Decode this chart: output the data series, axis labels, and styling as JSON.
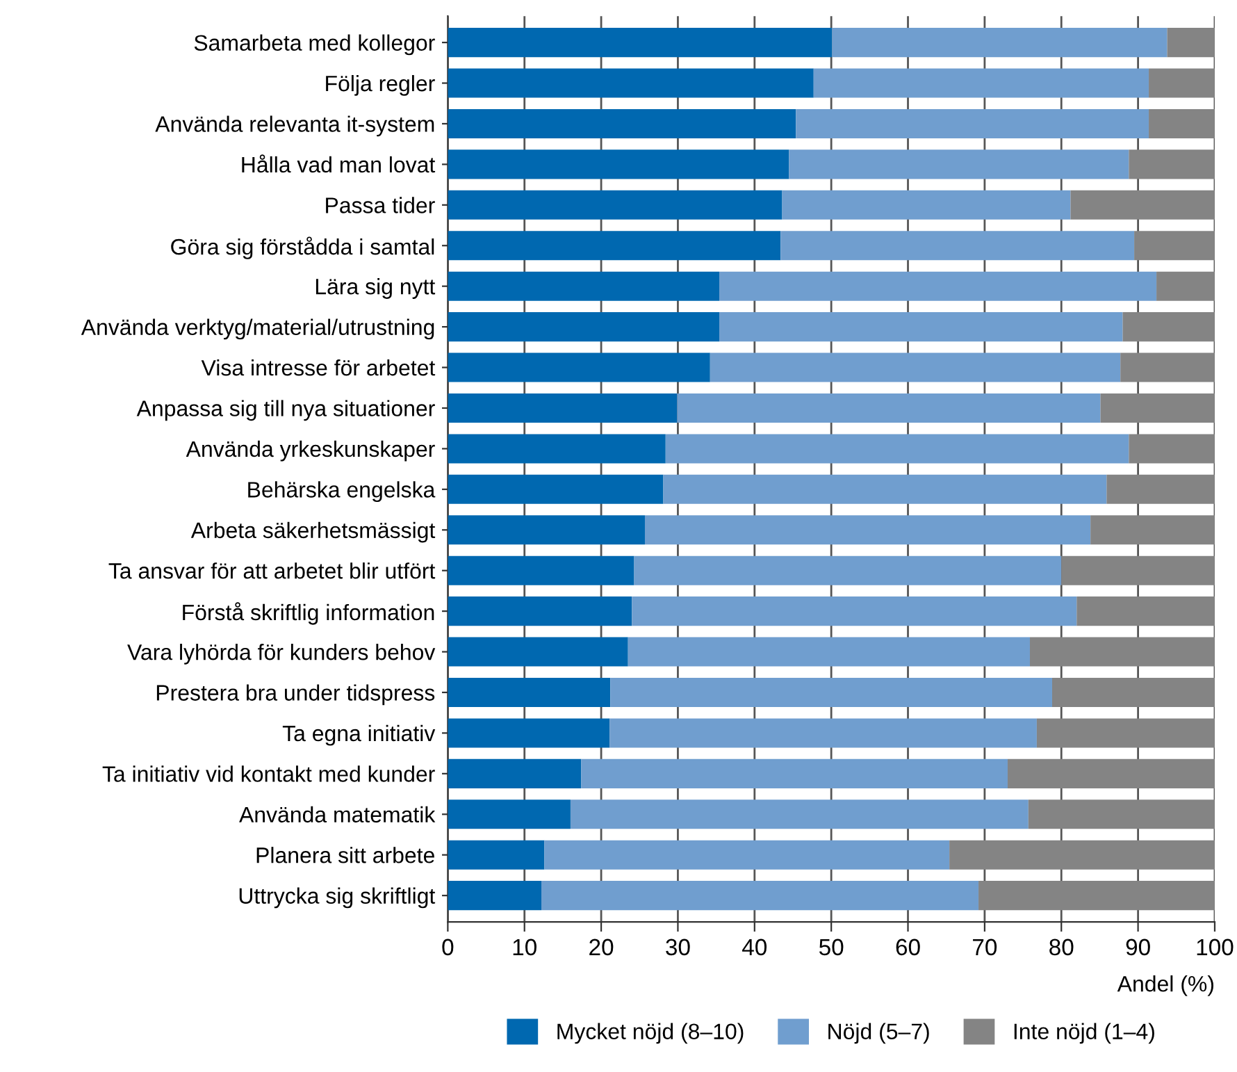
{
  "chart_data": {
    "type": "bar",
    "orientation": "horizontal",
    "stacked": true,
    "xlabel": "Andel (%)",
    "categories": [
      "Samarbeta med kollegor",
      "Följa regler",
      "Använda relevanta it-system",
      "Hålla vad man lovat",
      "Passa tider",
      "Göra sig förstådda i samtal",
      "Lära sig nytt",
      "Använda verktyg/material/utrustning",
      "Visa intresse för arbetet",
      "Anpassa sig till nya situationer",
      "Använda yrkeskunskaper",
      "Behärska engelska",
      "Arbeta säkerhetsmässigt",
      "Ta ansvar för att arbetet blir utfört",
      "Förstå skriftlig information",
      "Vara lyhörda för kunders behov",
      "Prestera bra under tidspress",
      "Ta egna initiativ",
      "Ta initiativ vid kontakt med kunder",
      "Använda matematik",
      "Planera sitt arbete",
      "Uttrycka sig skriftligt"
    ],
    "series": [
      {
        "name": "Mycket nöjd (8–10)",
        "color": "#0068b0",
        "values": [
          50.1,
          47.7,
          45.4,
          44.5,
          43.6,
          43.4,
          35.4,
          35.4,
          34.2,
          29.9,
          28.4,
          28.1,
          25.7,
          24.3,
          24.0,
          23.5,
          21.2,
          21.1,
          17.4,
          16.0,
          12.6,
          12.2
        ]
      },
      {
        "name": "Nöjd (5–7)",
        "color": "#709ecf",
        "values": [
          43.7,
          43.7,
          46.0,
          44.3,
          37.6,
          46.1,
          57.0,
          52.6,
          53.5,
          55.2,
          60.4,
          57.8,
          58.1,
          55.7,
          58.0,
          52.4,
          57.6,
          55.7,
          55.6,
          59.7,
          52.8,
          57.0
        ]
      },
      {
        "name": "Inte nöjd (1–4)",
        "color": "#848484",
        "values": [
          6.2,
          8.6,
          8.6,
          11.2,
          18.8,
          10.5,
          7.6,
          12.0,
          12.3,
          14.9,
          11.2,
          14.1,
          16.2,
          20.0,
          18.0,
          24.1,
          21.2,
          23.2,
          27.0,
          24.3,
          34.6,
          30.8
        ]
      }
    ],
    "xlim": [
      0,
      100
    ],
    "xticks": [
      0,
      10,
      20,
      30,
      40,
      50,
      60,
      70,
      80,
      90,
      100
    ],
    "grid": "x",
    "legend": "bottom"
  }
}
